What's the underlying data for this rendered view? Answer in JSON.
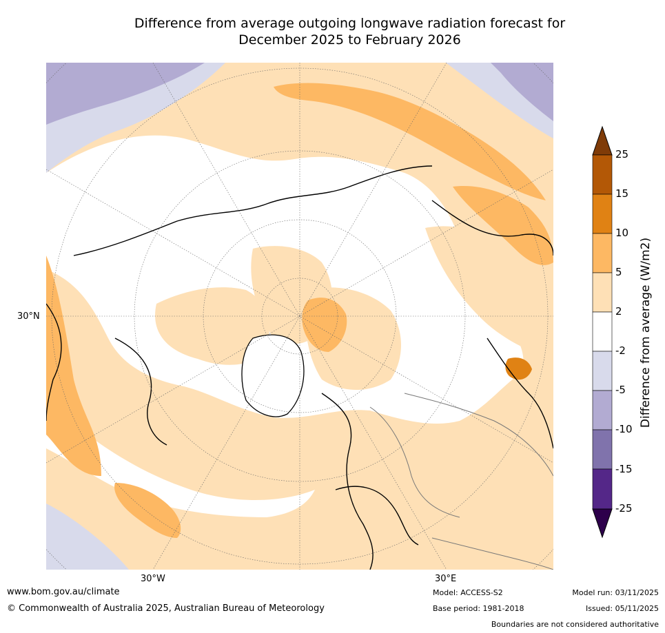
{
  "title_line1": "Difference from average outgoing longwave radiation forecast for",
  "title_line2": "December 2025 to February 2026",
  "map": {
    "lat_label": "30°N",
    "lon_label_west": "30°W",
    "lon_label_east": "30°E"
  },
  "legend": {
    "title": "Difference from average (W/m2)",
    "ticks": [
      "25",
      "15",
      "10",
      "5",
      "2",
      "-2",
      "-5",
      "-10",
      "-15",
      "-25"
    ],
    "colors": {
      "above_25": "#7f3b08",
      "15_25": "#b35806",
      "10_15": "#e08214",
      "5_10": "#fdb863",
      "2_5": "#fee0b6",
      "neg2_2": "#ffffff",
      "neg5_neg2": "#d8daeb",
      "neg10_neg5": "#b2abd2",
      "neg15_neg10": "#8073ac",
      "neg25_neg15": "#542788",
      "below_neg25": "#2d004b"
    }
  },
  "footer": {
    "website": "www.bom.gov.au/climate",
    "copyright": "© Commonwealth of Australia 2025, Australian Bureau of Meteorology",
    "model": "Model: ACCESS-S2",
    "base_period": "Base period: 1981-2018",
    "model_run": "Model run: 03/11/2025",
    "issued": "Issued: 05/11/2025",
    "boundaries": "Boundaries are not considered authoritative"
  }
}
